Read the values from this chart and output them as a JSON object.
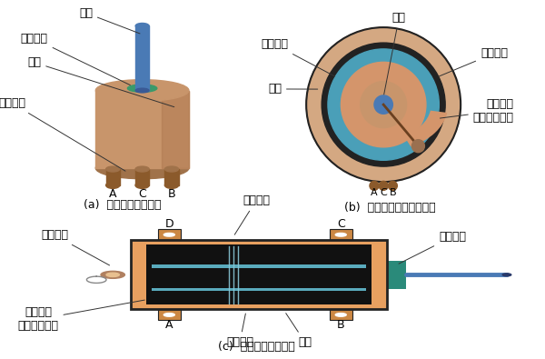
{
  "bg_color": "#ffffff",
  "title_a": "(a)  圆盘式电位器外形",
  "title_b": "(b)  圆盘式电位器内部结构",
  "title_c": "(c)  直线式电位器结构",
  "pot_body_color": "#c8956b",
  "pot_body_dark": "#a0724a",
  "pot_body_shade": "#b07850",
  "shaft_color": "#4a7ab5",
  "shaft_base_color": "#3a9a6a",
  "terminal_color": "#8b5a2b",
  "outer_casing_color": "#d4a882",
  "black_ring_color": "#222222",
  "teal_ring_color": "#4a9bb5",
  "orange_disc_color": "#d4956b",
  "center_hub_color": "#c8956b",
  "brush_arm_color": "#7a5030",
  "brush_tip_color": "#c09060",
  "linear_body_color": "#e8a060",
  "linear_inner_color": "#1a1a1a",
  "linear_rail_color1": "#4a9bb5",
  "linear_rail_color2": "#7ab0c8",
  "linear_shaft_color": "#2a8a7a",
  "linear_rod_color": "#4a7ab5",
  "linear_tab_color": "#cc8844",
  "font_size": 9,
  "annotation_color": "#000000",
  "line_color": "#333333"
}
